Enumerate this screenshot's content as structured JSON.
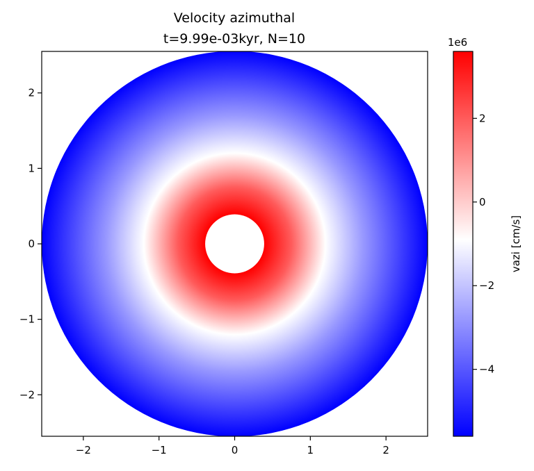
{
  "chart_data": {
    "type": "heatmap",
    "title": "Velocity azimuthal",
    "subtitle": "t=9.99e-03kyr, N=10",
    "xlim": [
      -2.55,
      2.55
    ],
    "ylim": [
      -2.55,
      2.55
    ],
    "x_ticks": [
      -2,
      -1,
      0,
      1,
      2
    ],
    "y_ticks": [
      -2,
      -1,
      0,
      1,
      2
    ],
    "x_tick_labels": [
      "−2",
      "−1",
      "0",
      "1",
      "2"
    ],
    "y_tick_labels": [
      "−2",
      "−1",
      "0",
      "1",
      "2"
    ],
    "disk": {
      "inner_radius": 0.39,
      "outer_radius": 2.55,
      "radial_profile": [
        {
          "r": 0.39,
          "vazi": 3600000.0
        },
        {
          "r": 0.75,
          "vazi": 2000000.0
        },
        {
          "r": 1.2,
          "vazi": -900000.0
        },
        {
          "r": 1.7,
          "vazi": -2800000.0
        },
        {
          "r": 2.55,
          "vazi": -5600000.0
        }
      ]
    },
    "colorbar": {
      "label": "vazi [cm/s]",
      "offset_text": "1e6",
      "min": -5.6,
      "max": 3.6,
      "center": -0.9,
      "ticks": [
        2,
        0,
        -2,
        -4
      ],
      "tick_labels": [
        "2",
        "0",
        "−2",
        "−4"
      ],
      "colors": {
        "low": "#0000ff",
        "mid": "#ffffff",
        "high": "#ff0000"
      }
    },
    "grid": false
  }
}
